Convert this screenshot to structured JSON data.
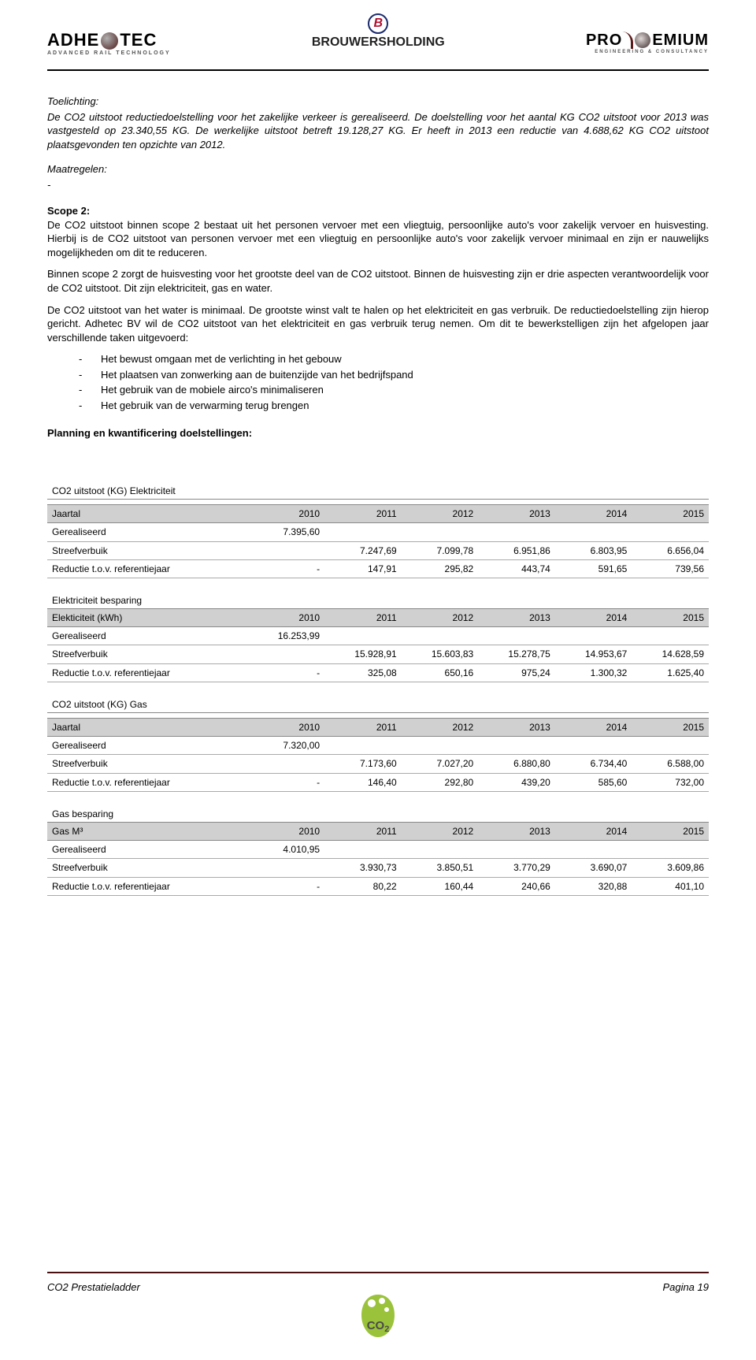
{
  "logos": {
    "l1_a": "ADHE",
    "l1_b": "TEC",
    "l1_sub": "ADVANCED RAIL TECHNOLOGY",
    "l2_a": "BROUWERS",
    "l2_b": "HOLDING",
    "l3_a": "PRO",
    "l3_b": "EMIUM",
    "l3_sub": "ENGINEERING & CONSULTANCY"
  },
  "toelichting": {
    "h": "Toelichting:",
    "p": "De CO2 uitstoot reductiedoelstelling voor het zakelijke verkeer is gerealiseerd. De doelstelling voor het aantal KG CO2 uitstoot voor 2013 was vastgesteld op 23.340,55 KG. De werkelijke uitstoot betreft 19.128,27 KG. Er heeft in 2013 een reductie van 4.688,62 KG CO2 uitstoot plaatsgevonden ten opzichte van 2012.",
    "m": "Maatregelen:",
    "dash": "-"
  },
  "scope2": {
    "h": "Scope 2:",
    "p1": "De CO2 uitstoot binnen scope 2 bestaat uit het personen vervoer met een vliegtuig, persoonlijke auto's voor zakelijk vervoer en huisvesting. Hierbij is de CO2 uitstoot van personen vervoer met een vliegtuig en persoonlijke auto's voor zakelijk vervoer minimaal en zijn er nauwelijks mogelijkheden om dit te reduceren.",
    "p2": "Binnen scope 2 zorgt de huisvesting voor het grootste deel van de CO2 uitstoot. Binnen de huisvesting zijn er drie aspecten verantwoordelijk voor de CO2 uitstoot. Dit zijn elektriciteit, gas en water.",
    "p3": "De CO2 uitstoot van het water is minimaal. De grootste winst valt te halen op het elektriciteit en gas verbruik. De reductiedoelstelling zijn hierop gericht. Adhetec BV wil de CO2 uitstoot van het elektriciteit en gas verbruik terug nemen. Om dit te bewerkstelligen zijn het afgelopen jaar verschillende taken uitgevoerd:",
    "bullets": [
      "Het bewust omgaan met de verlichting in het gebouw",
      "Het plaatsen van zonwerking aan de buitenzijde van het bedrijfspand",
      "Het gebruik van de mobiele airco's minimaliseren",
      "Het gebruik van de verwarming terug brengen"
    ]
  },
  "planning": "Planning en kwantificering doelstellingen:",
  "years": [
    "2010",
    "2011",
    "2012",
    "2013",
    "2014",
    "2015"
  ],
  "rowlabels": {
    "jaartal": "Jaartal",
    "gereal": "Gerealiseerd",
    "streef": "Streefverbuik",
    "reduct": "Reductie t.o.v. referentiejaar"
  },
  "tables": [
    {
      "title": "CO2 uitstoot (KG) Elektriciteit",
      "gereal": [
        "7.395,60",
        "",
        "",
        "",
        "",
        ""
      ],
      "streef": [
        "",
        "7.247,69",
        "7.099,78",
        "6.951,86",
        "6.803,95",
        "6.656,04"
      ],
      "reduct": [
        "-",
        "147,91",
        "295,82",
        "443,74",
        "591,65",
        "739,56"
      ]
    },
    {
      "title": "Elektriciteit besparing",
      "header_label": "Elekticiteit (kWh)",
      "gereal": [
        "16.253,99",
        "",
        "",
        "",
        "",
        ""
      ],
      "streef": [
        "",
        "15.928,91",
        "15.603,83",
        "15.278,75",
        "14.953,67",
        "14.628,59"
      ],
      "reduct": [
        "-",
        "325,08",
        "650,16",
        "975,24",
        "1.300,32",
        "1.625,40"
      ]
    },
    {
      "title": "CO2 uitstoot (KG) Gas",
      "gereal": [
        "7.320,00",
        "",
        "",
        "",
        "",
        ""
      ],
      "streef": [
        "",
        "7.173,60",
        "7.027,20",
        "6.880,80",
        "6.734,40",
        "6.588,00"
      ],
      "reduct": [
        "-",
        "146,40",
        "292,80",
        "439,20",
        "585,60",
        "732,00"
      ]
    },
    {
      "title": "Gas besparing",
      "header_label": "Gas M³",
      "gereal": [
        "4.010,95",
        "",
        "",
        "",
        "",
        ""
      ],
      "streef": [
        "",
        "3.930,73",
        "3.850,51",
        "3.770,29",
        "3.690,07",
        "3.609,86"
      ],
      "reduct": [
        "-",
        "80,22",
        "160,44",
        "240,66",
        "320,88",
        "401,10"
      ]
    }
  ],
  "footer": {
    "left_a": "CO",
    "left_i": "2",
    "left_b": " Prestatieladder",
    "right": "Pagina 19",
    "icon_label": "CO2"
  },
  "colors": {
    "header_bg": "#d0d0d0",
    "border": "#aaaaaa",
    "footer_rule": "#4a0f0f"
  }
}
